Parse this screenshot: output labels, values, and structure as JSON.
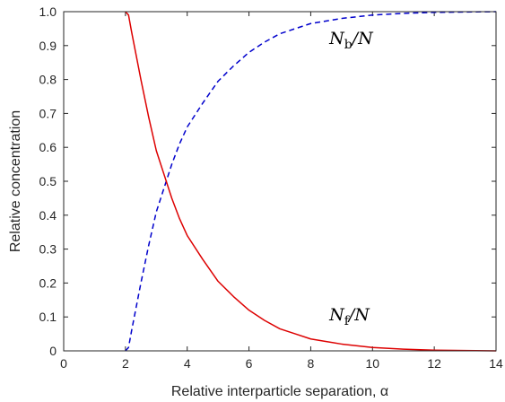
{
  "chart_data": {
    "type": "line",
    "title": "",
    "xlabel": "Relative interparticle separation, α",
    "ylabel": "Relative concentration",
    "xlim": [
      0,
      14
    ],
    "ylim": [
      0,
      1
    ],
    "xticks": [
      0,
      2,
      4,
      6,
      8,
      10,
      12,
      14
    ],
    "yticks": [
      0,
      0.1,
      0.2,
      0.3,
      0.4,
      0.5,
      0.6,
      0.7,
      0.8,
      0.9,
      1
    ],
    "ytick_labels": [
      "0",
      "0.1",
      "0.2",
      "0.3",
      "0.4",
      "0.5",
      "0.6",
      "0.7",
      "0.8",
      "0.9",
      "1.0"
    ],
    "grid": false,
    "series": [
      {
        "id": "bound",
        "color": "#0000cc",
        "dash": "dashed",
        "x": [
          2.0,
          2.1,
          2.2,
          2.35,
          2.5,
          2.75,
          3.0,
          3.25,
          3.5,
          3.75,
          4.0,
          4.5,
          5.0,
          5.5,
          6.0,
          6.5,
          7.0,
          7.5,
          8.0,
          9.0,
          10.0,
          11.0,
          12.0,
          13.0,
          14.0
        ],
        "y": [
          0.0,
          0.01,
          0.06,
          0.13,
          0.2,
          0.31,
          0.41,
          0.48,
          0.55,
          0.61,
          0.66,
          0.73,
          0.795,
          0.84,
          0.88,
          0.91,
          0.935,
          0.95,
          0.965,
          0.98,
          0.99,
          0.995,
          0.998,
          0.999,
          1.0
        ]
      },
      {
        "id": "free",
        "color": "#dd0000",
        "dash": "solid",
        "x": [
          2.0,
          2.1,
          2.2,
          2.35,
          2.5,
          2.75,
          3.0,
          3.25,
          3.5,
          3.75,
          4.0,
          4.5,
          5.0,
          5.5,
          6.0,
          6.5,
          7.0,
          7.5,
          8.0,
          9.0,
          10.0,
          11.0,
          12.0,
          13.0,
          14.0
        ],
        "y": [
          1.0,
          0.99,
          0.94,
          0.87,
          0.8,
          0.69,
          0.59,
          0.52,
          0.45,
          0.39,
          0.34,
          0.27,
          0.205,
          0.16,
          0.12,
          0.09,
          0.065,
          0.05,
          0.035,
          0.02,
          0.01,
          0.005,
          0.002,
          0.001,
          0.0
        ]
      }
    ],
    "annotations": [
      {
        "id": "nb",
        "main": "N",
        "sub": "b",
        "rest": "/N",
        "x": 8.6,
        "y": 0.905
      },
      {
        "id": "nf",
        "main": "N",
        "sub": "f",
        "rest": "/N",
        "x": 8.6,
        "y": 0.09
      }
    ]
  }
}
